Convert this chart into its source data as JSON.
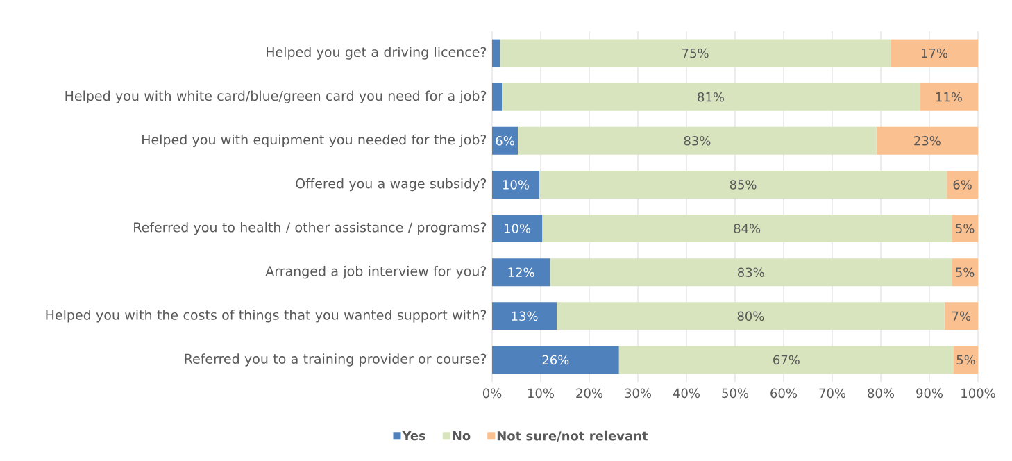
{
  "chart_data": {
    "type": "bar",
    "orientation": "horizontal",
    "stacked": true,
    "categories": [
      "Helped you get a driving licence?",
      "Helped you with white card/blue/green card you need for a job?",
      "Helped you with equipment you needed for the job?",
      "Offered you a wage subsidy?",
      "Referred you to health / other assistance / programs?",
      "Arranged a job interview for you?",
      "Helped you with the costs of things that you wanted support with?",
      "Referred you to a training provider or course?"
    ],
    "series": [
      {
        "name": "Yes",
        "color": "#4f81bd",
        "values": [
          1.6,
          2.0,
          5.3,
          9.7,
          10.3,
          11.9,
          13.3,
          26.1
        ]
      },
      {
        "name": "No",
        "color": "#d7e4bd",
        "values": [
          80.4,
          86.0,
          73.8,
          83.9,
          84.3,
          82.7,
          79.8,
          68.9
        ]
      },
      {
        "name": "Not sure/not relevant",
        "color": "#fac090",
        "values": [
          18.0,
          12.0,
          20.9,
          6.4,
          5.4,
          5.4,
          6.9,
          5.0
        ]
      }
    ],
    "annotations": [
      "75%",
      "17%",
      "81%",
      "11%",
      "6%",
      "83%",
      "23%",
      "10%",
      "85%",
      "6%",
      "10%",
      "84%",
      "5%",
      "12%",
      "83%",
      "5%",
      "13%",
      "80%",
      "7%",
      "26%",
      "67%",
      "5%"
    ],
    "xlim": [
      0,
      100
    ],
    "xticks": [
      {
        "value": 0,
        "label": "0%"
      },
      {
        "value": 10,
        "label": "10%"
      },
      {
        "value": 20,
        "label": "20%"
      },
      {
        "value": 30,
        "label": "30%"
      },
      {
        "value": 40,
        "label": "40%"
      },
      {
        "value": 50,
        "label": "50%"
      },
      {
        "value": 60,
        "label": "60%"
      },
      {
        "value": 70,
        "label": "70%"
      },
      {
        "value": 80,
        "label": "80%"
      },
      {
        "value": 90,
        "label": "90%"
      },
      {
        "value": 100,
        "label": "100%"
      }
    ],
    "grid": "x",
    "legend": "bottom"
  }
}
